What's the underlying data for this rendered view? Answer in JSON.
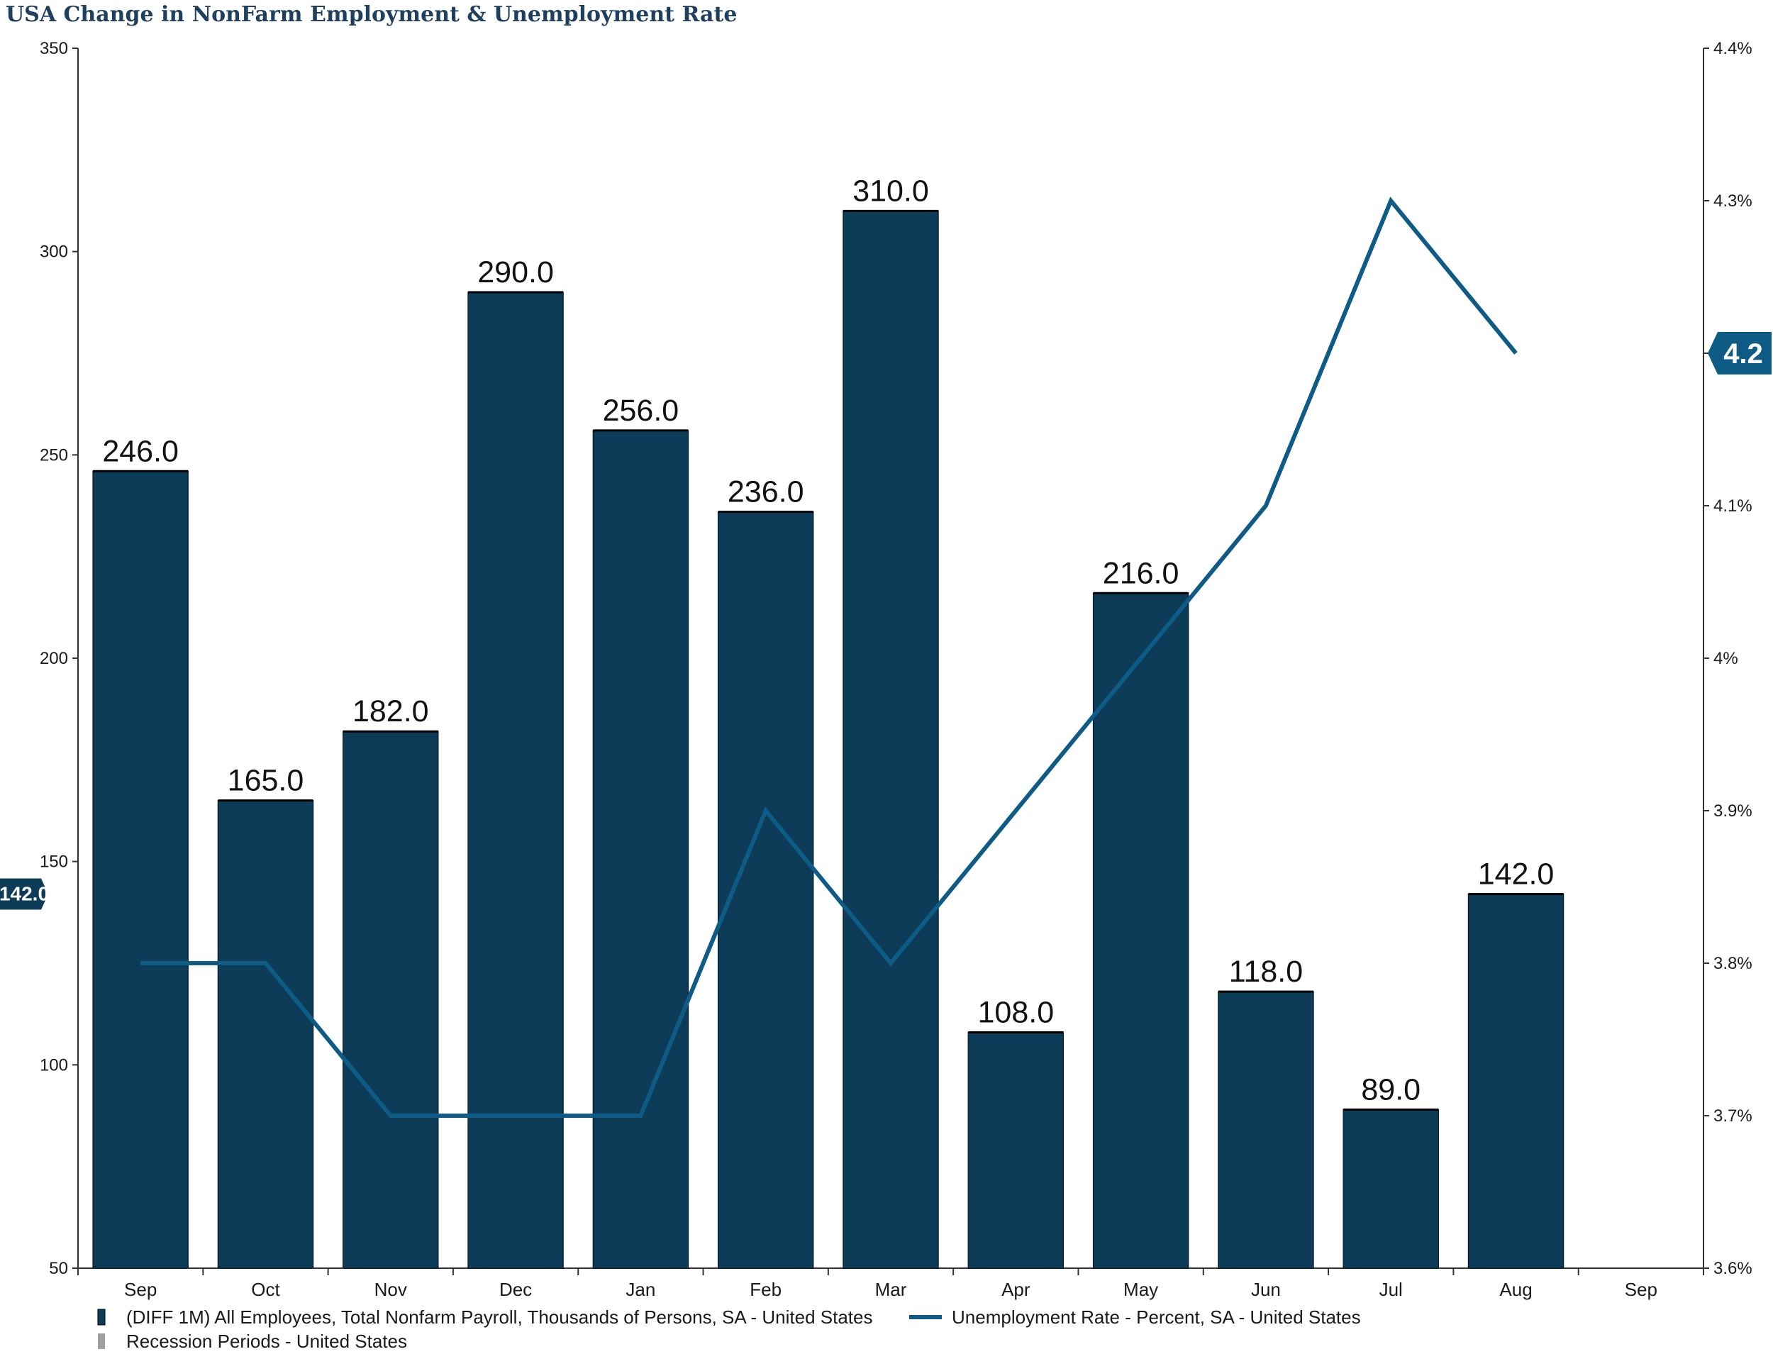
{
  "chart_data": {
    "type": "bar+line",
    "title": "USA Change in NonFarm Employment & Unemployment Rate",
    "categories": [
      "Sep",
      "Oct",
      "Nov",
      "Dec",
      "Jan",
      "Feb",
      "Mar",
      "Apr",
      "May",
      "Jun",
      "Jul",
      "Aug",
      "Sep"
    ],
    "series": [
      {
        "name": "(DIFF 1M) All Employees, Total Nonfarm Payroll, Thousands of Persons, SA - United States",
        "kind": "bar",
        "axis": "left",
        "color": "#0c3c57",
        "values": [
          246.0,
          165.0,
          182.0,
          290.0,
          256.0,
          236.0,
          310.0,
          108.0,
          216.0,
          118.0,
          89.0,
          142.0,
          null
        ],
        "labels": [
          "246.0",
          "165.0",
          "182.0",
          "290.0",
          "256.0",
          "236.0",
          "310.0",
          "108.0",
          "216.0",
          "118.0",
          "89.0",
          "142.0",
          ""
        ]
      },
      {
        "name": "Unemployment Rate - Percent, SA - United States",
        "kind": "line",
        "axis": "right",
        "color": "#0e5b86",
        "values": [
          3.8,
          3.8,
          3.7,
          3.7,
          3.7,
          3.9,
          3.8,
          3.9,
          4.0,
          4.1,
          4.3,
          4.2,
          null
        ]
      }
    ],
    "left_axis": {
      "ylim": [
        50,
        350
      ],
      "ticks": [
        50,
        100,
        150,
        200,
        250,
        300,
        350
      ],
      "tick_labels": [
        "50",
        "100",
        "150",
        "200",
        "250",
        "300",
        "350"
      ]
    },
    "right_axis": {
      "ylim": [
        3.6,
        4.4
      ],
      "ticks": [
        3.6,
        3.7,
        3.8,
        3.9,
        4.0,
        4.1,
        4.2,
        4.3,
        4.4
      ],
      "tick_labels": [
        "3.6%",
        "3.7%",
        "3.8%",
        "3.9%",
        "4%",
        "4.1%",
        "",
        "4.3%",
        "4.4%"
      ]
    },
    "left_last_value": {
      "value": 142.0,
      "label": "142.0",
      "color": "#0c3c57"
    },
    "right_last_value": {
      "value": 4.2,
      "label": "4.2",
      "color": "#0e5b86"
    },
    "legend": {
      "position": "bottom-left",
      "items": [
        {
          "label": "(DIFF 1M) All Employees, Total Nonfarm Payroll, Thousands of Persons, SA - United States",
          "color": "#0c3c57",
          "kind": "bar"
        },
        {
          "label": "Unemployment Rate - Percent, SA - United States",
          "color": "#0e5b86",
          "kind": "line"
        },
        {
          "label": "Recession Periods - United States",
          "color": "#a0a0a0",
          "kind": "bar"
        }
      ]
    },
    "grid": false
  }
}
